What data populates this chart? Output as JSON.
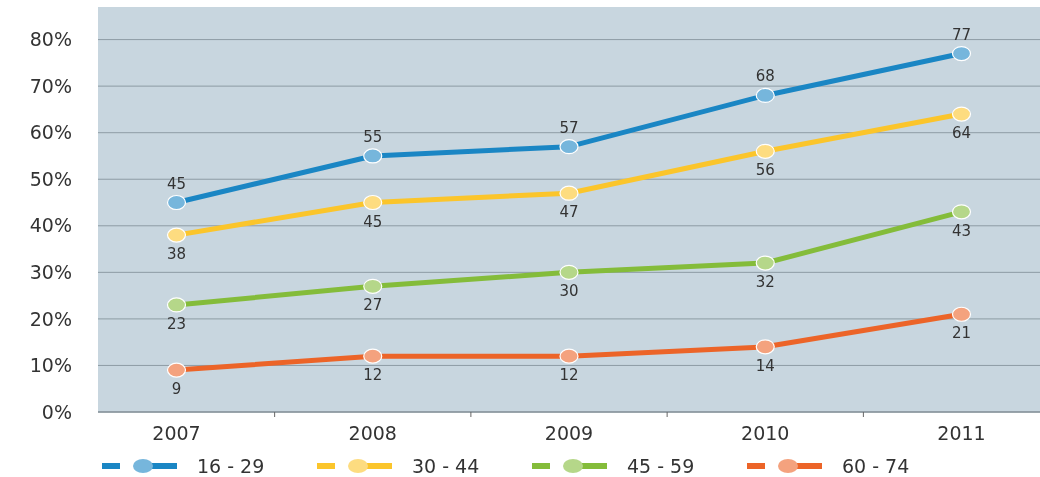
{
  "chart_data": {
    "type": "line",
    "categories": [
      "2007",
      "2008",
      "2009",
      "2010",
      "2011"
    ],
    "series": [
      {
        "name": "16 - 29",
        "color": "#1a86c4",
        "values": [
          45,
          55,
          57,
          68,
          77
        ]
      },
      {
        "name": "30 - 44",
        "color": "#fbc52b",
        "values": [
          38,
          45,
          47,
          56,
          64
        ]
      },
      {
        "name": "45 - 59",
        "color": "#84bc3a",
        "values": [
          23,
          27,
          30,
          32,
          43
        ]
      },
      {
        "name": "60 - 74",
        "color": "#ec6428",
        "values": [
          9,
          12,
          12,
          14,
          21
        ]
      }
    ],
    "ylim": [
      0,
      87
    ],
    "yticks": [
      {
        "value": 0,
        "label": "0%"
      },
      {
        "value": 10,
        "label": "10%"
      },
      {
        "value": 20,
        "label": "20%"
      },
      {
        "value": 30,
        "label": "30%"
      },
      {
        "value": 40,
        "label": "40%"
      },
      {
        "value": 50,
        "label": "50%"
      },
      {
        "value": 60,
        "label": "60%"
      },
      {
        "value": 70,
        "label": "70%"
      },
      {
        "value": 80,
        "label": "80%"
      }
    ],
    "grid": "y",
    "legend": "bottom",
    "marker": "circle",
    "data_labels": true
  }
}
